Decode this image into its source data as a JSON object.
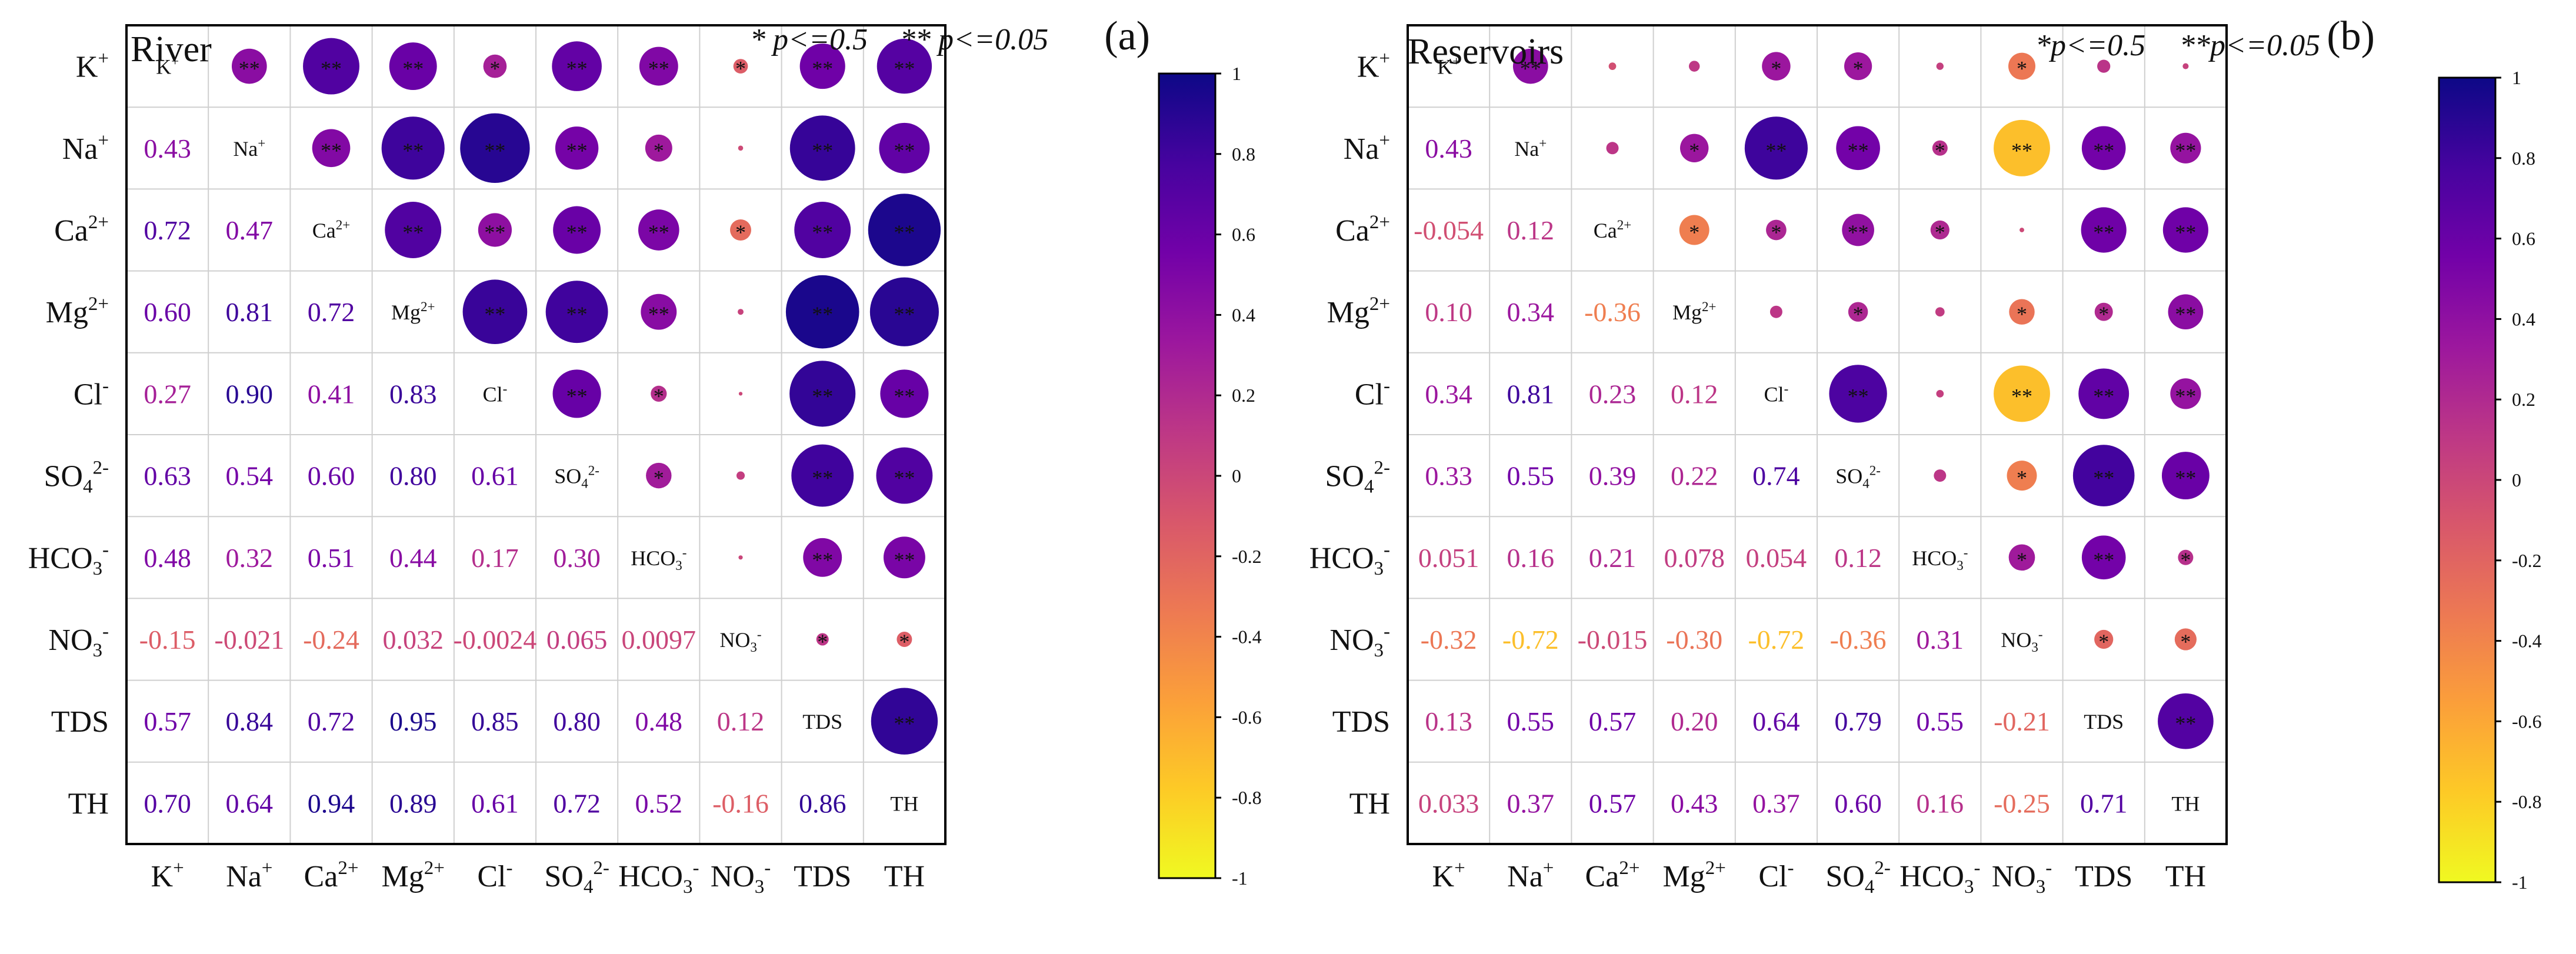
{
  "figure": {
    "colorbar": {
      "stops": [
        "#f0f921",
        "#fdca26",
        "#fb9f3a",
        "#ed7953",
        "#d8576b",
        "#bd3786",
        "#9c179e",
        "#7201a8",
        "#46039f",
        "#0d0887"
      ],
      "ticks": [
        "1",
        "0.8",
        "0.6",
        "0.4",
        "0.2",
        "0",
        "-0.2",
        "-0.4",
        "-0.6",
        "-0.8",
        "-1"
      ]
    }
  },
  "chart_data": [
    {
      "type": "correlation-matrix",
      "panel": "(a)",
      "title": "River",
      "legend_text": {
        "one_star": "* p<=0.5",
        "two_star": "** p<=0.05"
      },
      "variables": [
        "K+",
        "Na+",
        "Ca2+",
        "Mg2+",
        "Cl-",
        "SO42-",
        "HCO3-",
        "NO3-",
        "TDS",
        "TH"
      ],
      "variable_labels": [
        {
          "base": "K",
          "sup": "+",
          "sub": ""
        },
        {
          "base": "Na",
          "sup": "+",
          "sub": ""
        },
        {
          "base": "Ca",
          "sup": "2+",
          "sub": ""
        },
        {
          "base": "Mg",
          "sup": "2+",
          "sub": ""
        },
        {
          "base": "Cl",
          "sup": "-",
          "sub": ""
        },
        {
          "base": "SO",
          "sup": "2-",
          "sub": "4"
        },
        {
          "base": "HCO",
          "sup": "-",
          "sub": "3"
        },
        {
          "base": "NO",
          "sup": "-",
          "sub": "3"
        },
        {
          "base": "TDS",
          "sup": "",
          "sub": ""
        },
        {
          "base": "TH",
          "sup": "",
          "sub": ""
        }
      ],
      "value_range": [
        -1,
        1
      ],
      "lower_triangle_labels": [
        [
          "0.43"
        ],
        [
          "0.72",
          "0.47"
        ],
        [
          "0.60",
          "0.81",
          "0.72"
        ],
        [
          "0.27",
          "0.90",
          "0.41",
          "0.83"
        ],
        [
          "0.63",
          "0.54",
          "0.60",
          "0.80",
          "0.61"
        ],
        [
          "0.48",
          "0.32",
          "0.51",
          "0.44",
          "0.17",
          "0.30"
        ],
        [
          "-0.15",
          "-0.021",
          "-0.24",
          "0.032",
          "-0.0024",
          "0.065",
          "0.0097"
        ],
        [
          "0.57",
          "0.84",
          "0.72",
          "0.95",
          "0.85",
          "0.80",
          "0.48",
          "0.12"
        ],
        [
          "0.70",
          "0.64",
          "0.94",
          "0.89",
          "0.61",
          "0.72",
          "0.52",
          "-0.16",
          "0.86"
        ]
      ],
      "matrix": [
        [
          1,
          0.43,
          0.72,
          0.6,
          0.27,
          0.63,
          0.48,
          -0.15,
          0.57,
          0.7
        ],
        [
          0.43,
          1,
          0.47,
          0.81,
          0.9,
          0.54,
          0.32,
          -0.021,
          0.84,
          0.64
        ],
        [
          0.72,
          0.47,
          1,
          0.72,
          0.41,
          0.6,
          0.51,
          -0.24,
          0.72,
          0.94
        ],
        [
          0.6,
          0.81,
          0.72,
          1,
          0.83,
          0.8,
          0.44,
          0.032,
          0.95,
          0.89
        ],
        [
          0.27,
          0.9,
          0.41,
          0.83,
          1,
          0.61,
          0.17,
          -0.0024,
          0.85,
          0.61
        ],
        [
          0.63,
          0.54,
          0.6,
          0.8,
          0.61,
          1,
          0.3,
          0.065,
          0.8,
          0.72
        ],
        [
          0.48,
          0.32,
          0.51,
          0.44,
          0.17,
          0.3,
          1,
          0.0097,
          0.48,
          0.52
        ],
        [
          -0.15,
          -0.021,
          -0.24,
          0.032,
          -0.0024,
          0.065,
          0.0097,
          1,
          0.12,
          -0.16
        ],
        [
          0.57,
          0.84,
          0.72,
          0.95,
          0.85,
          0.8,
          0.48,
          0.12,
          1,
          0.86
        ],
        [
          0.7,
          0.64,
          0.94,
          0.89,
          0.61,
          0.72,
          0.52,
          -0.16,
          0.86,
          1
        ]
      ],
      "upper_triangle_significance": [
        [
          "**",
          "**",
          "**",
          "*",
          "**",
          "**",
          "*",
          "**",
          "**"
        ],
        [
          "**",
          "**",
          "**",
          "**",
          "*",
          "",
          "**",
          "**"
        ],
        [
          "**",
          "**",
          "**",
          "**",
          "*",
          "**",
          "**"
        ],
        [
          "**",
          "**",
          "**",
          "",
          "**",
          "**"
        ],
        [
          "**",
          "*",
          "",
          "**",
          "**"
        ],
        [
          "*",
          "",
          "**",
          "**"
        ],
        [
          "",
          "**",
          "**"
        ],
        [
          "*",
          "*"
        ],
        [
          "**"
        ]
      ]
    },
    {
      "type": "correlation-matrix",
      "panel": "(b)",
      "title": "Reservoirs",
      "legend_text": {
        "one_star": "*p<=0.5",
        "two_star": "**p<=0.05"
      },
      "variables": [
        "K+",
        "Na+",
        "Ca2+",
        "Mg2+",
        "Cl-",
        "SO42-",
        "HCO3-",
        "NO3-",
        "TDS",
        "TH"
      ],
      "variable_labels": [
        {
          "base": "K",
          "sup": "+",
          "sub": ""
        },
        {
          "base": "Na",
          "sup": "+",
          "sub": ""
        },
        {
          "base": "Ca",
          "sup": "2+",
          "sub": ""
        },
        {
          "base": "Mg",
          "sup": "2+",
          "sub": ""
        },
        {
          "base": "Cl",
          "sup": "-",
          "sub": ""
        },
        {
          "base": "SO",
          "sup": "2-",
          "sub": "4"
        },
        {
          "base": "HCO",
          "sup": "-",
          "sub": "3"
        },
        {
          "base": "NO",
          "sup": "-",
          "sub": "3"
        },
        {
          "base": "TDS",
          "sup": "",
          "sub": ""
        },
        {
          "base": "TH",
          "sup": "",
          "sub": ""
        }
      ],
      "value_range": [
        -1,
        1
      ],
      "lower_triangle_labels": [
        [
          "0.43"
        ],
        [
          "-0.054",
          "0.12"
        ],
        [
          "0.10",
          "0.34",
          "-0.36"
        ],
        [
          "0.34",
          "0.81",
          "0.23",
          "0.12"
        ],
        [
          "0.33",
          "0.55",
          "0.39",
          "0.22",
          "0.74"
        ],
        [
          "0.051",
          "0.16",
          "0.21",
          "0.078",
          "0.054",
          "0.12"
        ],
        [
          "-0.32",
          "-0.72",
          "-0.015",
          "-0.30",
          "-0.72",
          "-0.36",
          "0.31"
        ],
        [
          "0.13",
          "0.55",
          "0.57",
          "0.20",
          "0.64",
          "0.79",
          "0.55",
          "-0.21"
        ],
        [
          "0.033",
          "0.37",
          "0.57",
          "0.43",
          "0.37",
          "0.60",
          "0.16",
          "-0.25",
          "0.71"
        ]
      ],
      "matrix": [
        [
          1,
          0.43,
          -0.054,
          0.1,
          0.34,
          0.33,
          0.051,
          -0.32,
          0.13,
          0.033
        ],
        [
          0.43,
          1,
          0.12,
          0.34,
          0.81,
          0.55,
          0.16,
          -0.72,
          0.55,
          0.37
        ],
        [
          -0.054,
          0.12,
          1,
          -0.36,
          0.23,
          0.39,
          0.21,
          -0.015,
          0.57,
          0.57
        ],
        [
          0.1,
          0.34,
          -0.36,
          1,
          0.12,
          0.22,
          0.078,
          -0.3,
          0.2,
          0.43
        ],
        [
          0.34,
          0.81,
          0.23,
          0.12,
          1,
          0.74,
          0.054,
          -0.72,
          0.64,
          0.37
        ],
        [
          0.33,
          0.55,
          0.39,
          0.22,
          0.74,
          1,
          0.12,
          -0.36,
          0.79,
          0.6
        ],
        [
          0.051,
          0.16,
          0.21,
          0.078,
          0.054,
          0.12,
          1,
          0.31,
          0.55,
          0.16
        ],
        [
          -0.32,
          -0.72,
          -0.015,
          -0.3,
          -0.72,
          -0.36,
          0.31,
          1,
          -0.21,
          -0.25
        ],
        [
          0.13,
          0.55,
          0.57,
          0.2,
          0.64,
          0.79,
          0.55,
          -0.21,
          1,
          0.71
        ],
        [
          0.033,
          0.37,
          0.57,
          0.43,
          0.37,
          0.6,
          0.16,
          -0.25,
          0.71,
          1
        ]
      ],
      "upper_triangle_significance": [
        [
          "**",
          "",
          "",
          "*",
          "*",
          "",
          "*",
          "",
          ""
        ],
        [
          "",
          "*",
          "**",
          "**",
          "*",
          "**",
          "**",
          "**"
        ],
        [
          "*",
          "*",
          "**",
          "*",
          "",
          "**",
          "**"
        ],
        [
          "",
          "*",
          "",
          "*",
          "*",
          "**"
        ],
        [
          "**",
          "",
          "**",
          "**",
          "**"
        ],
        [
          "",
          "*",
          "**",
          "**"
        ],
        [
          "*",
          "**",
          "*"
        ],
        [
          "*",
          "*"
        ],
        [
          "**"
        ]
      ]
    }
  ]
}
